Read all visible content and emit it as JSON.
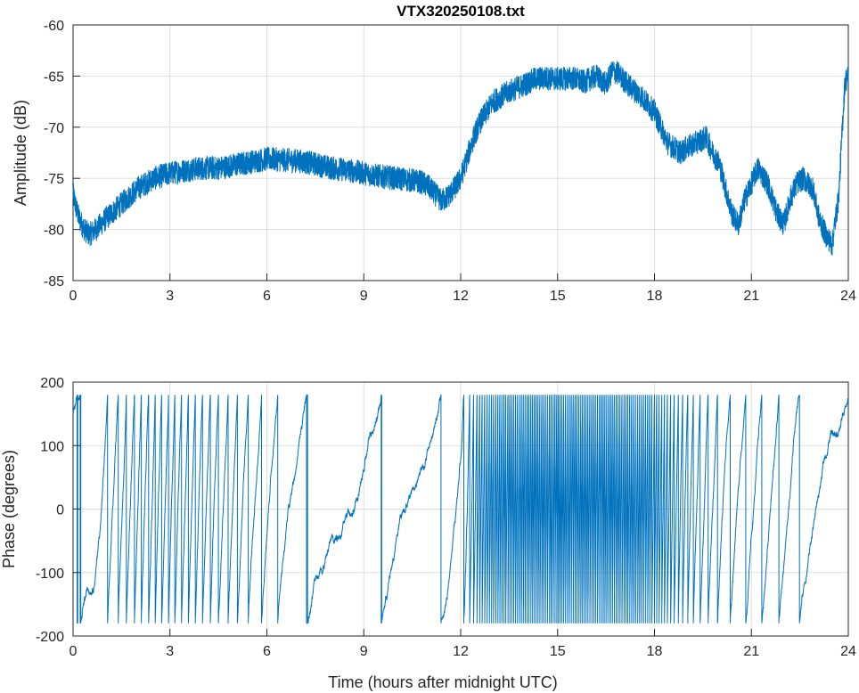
{
  "chart_data": [
    {
      "type": "line",
      "title": "VTX320250108.txt",
      "xlabel": "",
      "ylabel": "Amplitude (dB)",
      "xlim": [
        0,
        24
      ],
      "ylim": [
        -85,
        -60
      ],
      "xticks": [
        0,
        3,
        6,
        9,
        12,
        15,
        18,
        21,
        24
      ],
      "yticks": [
        -60,
        -65,
        -70,
        -75,
        -80,
        -85
      ],
      "grid": true,
      "color": "#0072BD",
      "series": [
        {
          "x": [
            0,
            0.1,
            0.2,
            0.35,
            0.5,
            0.7,
            1.0,
            1.5,
            2.0,
            2.5,
            3.0,
            3.5,
            4.0,
            4.5,
            5.0,
            5.5,
            6.0,
            6.5,
            7.0,
            7.5,
            8.0,
            8.5,
            9.0,
            9.5,
            10.0,
            10.5,
            10.8,
            11.0,
            11.2,
            11.4,
            11.6,
            11.8,
            12.0,
            12.2,
            12.4,
            12.6,
            12.8,
            13.0,
            13.5,
            14.0,
            14.3,
            14.6,
            15.0,
            15.5,
            15.8,
            16.2,
            16.5,
            16.7,
            16.9,
            17.1,
            17.3,
            17.6,
            18.0,
            18.2,
            18.4,
            18.6,
            18.8,
            19.0,
            19.3,
            19.6,
            19.8,
            20.0,
            20.2,
            20.4,
            20.6,
            20.8,
            21.0,
            21.2,
            21.5,
            21.8,
            22.0,
            22.2,
            22.4,
            22.6,
            22.9,
            23.1,
            23.3,
            23.5,
            23.6,
            23.7,
            23.8,
            23.85,
            23.9,
            24.0
          ],
          "y": [
            -76.5,
            -78.0,
            -79.0,
            -80.0,
            -80.5,
            -80.0,
            -79.0,
            -77.5,
            -76.0,
            -75.0,
            -74.5,
            -74.2,
            -74.0,
            -74.0,
            -73.7,
            -73.4,
            -73.1,
            -73.2,
            -73.3,
            -73.6,
            -74.0,
            -74.2,
            -74.5,
            -74.8,
            -75.0,
            -75.2,
            -75.4,
            -75.8,
            -76.5,
            -77.2,
            -76.8,
            -76.0,
            -75.0,
            -73.0,
            -71.0,
            -69.5,
            -68.5,
            -67.5,
            -66.5,
            -65.8,
            -65.3,
            -65.2,
            -65.3,
            -65.2,
            -65.6,
            -65.0,
            -65.8,
            -64.5,
            -64.8,
            -65.6,
            -66.2,
            -67.0,
            -68.5,
            -70.0,
            -71.5,
            -72.0,
            -72.5,
            -72.0,
            -71.5,
            -71.0,
            -72.5,
            -73.5,
            -76.0,
            -78.5,
            -79.5,
            -77.0,
            -75.5,
            -74.0,
            -75.5,
            -78.5,
            -79.5,
            -77.0,
            -75.5,
            -75.0,
            -76.0,
            -79.0,
            -80.5,
            -81.5,
            -79.0,
            -77.0,
            -71.0,
            -68.0,
            -65.5,
            -65.0
          ],
          "noise": 1.2
        }
      ]
    },
    {
      "type": "line",
      "title": "",
      "xlabel": "Time (hours after midnight UTC)",
      "ylabel": "Phase (degrees)",
      "xlim": [
        0,
        24
      ],
      "ylim": [
        -200,
        200
      ],
      "xticks": [
        0,
        3,
        6,
        9,
        12,
        15,
        18,
        21,
        24
      ],
      "yticks": [
        200,
        100,
        0,
        -100,
        -200
      ],
      "grid": true,
      "color": "#0072BD",
      "wrap": [
        -180,
        180
      ],
      "series": [
        {
          "t": [
            0,
            0.5,
            1.0,
            1.5,
            2.0,
            2.5,
            3.0,
            3.5,
            4.0,
            4.5,
            5.0,
            5.5,
            6.0,
            6.5,
            7.0,
            7.5,
            8.0,
            8.5,
            9.0,
            9.5,
            10.0,
            10.5,
            11.0,
            11.5,
            12.0,
            12.5,
            13.0,
            13.5,
            14.0,
            14.5,
            15.0,
            15.5,
            16.0,
            16.5,
            17.0,
            17.5,
            18.0,
            18.5,
            19.0,
            19.5,
            20.0,
            20.5,
            21.0,
            21.5,
            22.0,
            22.5,
            23.0,
            23.5,
            24.0
          ],
          "rate": [
            120,
            150,
            900,
            1400,
            1600,
            1900,
            1800,
            1700,
            1500,
            1300,
            1200,
            1000,
            800,
            500,
            300,
            200,
            150,
            120,
            200,
            300,
            250,
            180,
            150,
            250,
            700,
            4000,
            5500,
            6000,
            6200,
            6300,
            6300,
            6300,
            6300,
            6200,
            6100,
            5900,
            5200,
            3500,
            2200,
            1500,
            1100,
            800,
            700,
            650,
            600,
            450,
            300,
            200,
            120
          ],
          "phase0": 150
        }
      ]
    }
  ]
}
